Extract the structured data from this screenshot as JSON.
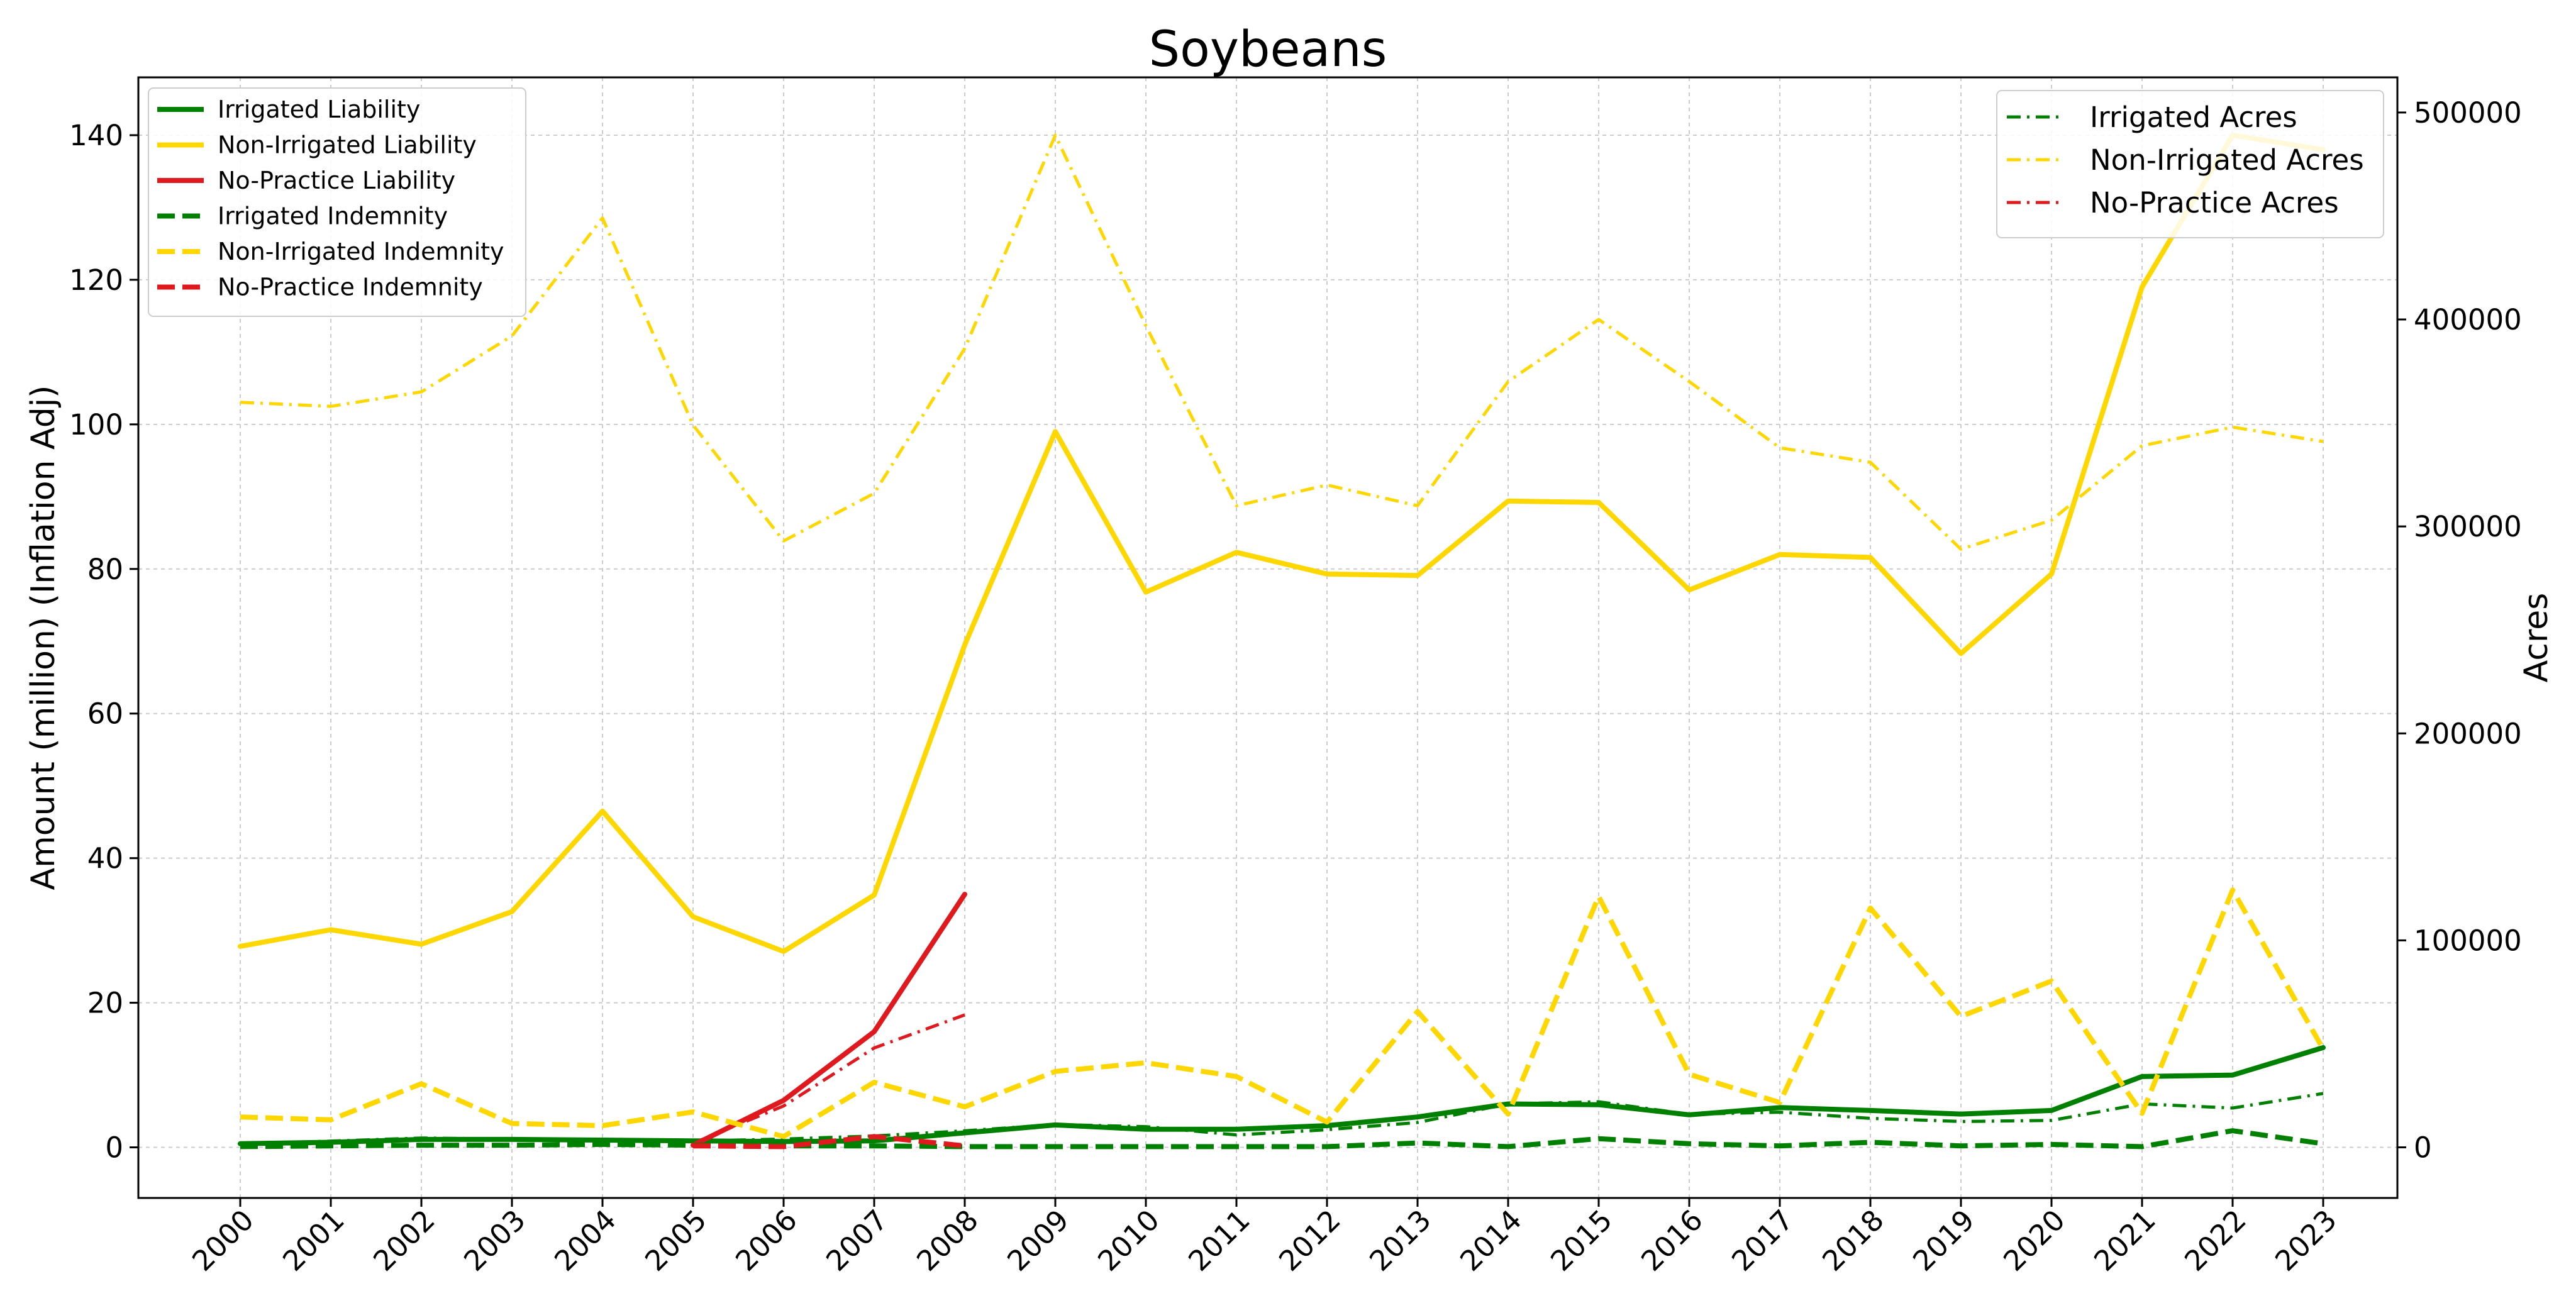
{
  "chart_data": {
    "type": "line",
    "title": "Soybeans",
    "ylabel": "Amount (million) (Inflation Adj)",
    "y2label": "Acres",
    "x": [
      "2000",
      "2001",
      "2002",
      "2003",
      "2004",
      "2005",
      "2006",
      "2007",
      "2008",
      "2009",
      "2010",
      "2011",
      "2012",
      "2013",
      "2014",
      "2015",
      "2016",
      "2017",
      "2018",
      "2019",
      "2020",
      "2021",
      "2022",
      "2023"
    ],
    "ylim": [
      -7,
      148
    ],
    "y2lim": [
      -24455,
      516982
    ],
    "yticks": [
      "0",
      "20",
      "40",
      "60",
      "80",
      "100",
      "120",
      "140"
    ],
    "y2ticks": [
      "0",
      "100000",
      "200000",
      "300000",
      "400000",
      "500000"
    ],
    "grid": true,
    "legend_left_position": "top-left",
    "legend_right_position": "top-right",
    "series": [
      {
        "name": "Irrigated Liability",
        "axis": "left",
        "style": "solid",
        "width": "thick",
        "color": "#008000",
        "values": [
          0.5,
          0.7,
          1.1,
          1.1,
          1.0,
          0.9,
          0.8,
          0.9,
          2.0,
          3.1,
          2.5,
          2.5,
          3.0,
          4.2,
          6.0,
          5.9,
          4.5,
          5.5,
          5.1,
          4.6,
          5.1,
          9.8,
          10.0,
          13.8
        ]
      },
      {
        "name": "Non-Irrigated Liability",
        "axis": "left",
        "style": "solid",
        "width": "thick",
        "color": "#FFD700",
        "values": [
          27.8,
          30.1,
          28.1,
          32.6,
          46.5,
          31.9,
          27.1,
          34.9,
          69.5,
          99.0,
          76.8,
          82.3,
          79.3,
          79.1,
          89.4,
          89.2,
          77.1,
          82.0,
          81.6,
          68.3,
          79.3,
          119.0,
          140.0,
          138.0
        ]
      },
      {
        "name": "No-Practice Liability",
        "axis": "left",
        "style": "solid",
        "width": "thick",
        "color": "#E0191E",
        "values": [
          null,
          null,
          null,
          null,
          null,
          0.3,
          6.5,
          16.0,
          35.0,
          null,
          null,
          null,
          null,
          null,
          null,
          null,
          null,
          null,
          null,
          null,
          null,
          null,
          null,
          null
        ]
      },
      {
        "name": "Irrigated Indemnity",
        "axis": "left",
        "style": "dashed",
        "width": "thick",
        "color": "#008000",
        "values": [
          0.1,
          0.2,
          0.3,
          0.3,
          0.4,
          0.3,
          0.2,
          0.2,
          0.1,
          0.1,
          0.1,
          0.1,
          0.1,
          0.6,
          0.1,
          1.2,
          0.5,
          0.2,
          0.7,
          0.2,
          0.4,
          0.1,
          2.3,
          0.5
        ]
      },
      {
        "name": "Non-Irrigated Indemnity",
        "axis": "left",
        "style": "dashed",
        "width": "thick",
        "color": "#FFD700",
        "values": [
          4.2,
          3.8,
          8.8,
          3.3,
          3.0,
          4.9,
          1.5,
          9.0,
          5.6,
          10.5,
          11.7,
          9.8,
          3.5,
          18.8,
          4.6,
          34.7,
          10.1,
          6.2,
          33.1,
          18.1,
          23.0,
          4.7,
          35.6,
          13.6
        ]
      },
      {
        "name": "No-Practice Indemnity",
        "axis": "left",
        "style": "dashed",
        "width": "thick",
        "color": "#E0191E",
        "values": [
          null,
          null,
          null,
          null,
          null,
          0.2,
          0.1,
          1.5,
          0.2,
          null,
          null,
          null,
          null,
          null,
          null,
          null,
          null,
          null,
          null,
          null,
          null,
          null,
          null,
          null
        ]
      },
      {
        "name": "Irrigated Acres",
        "axis": "right",
        "style": "dashdot",
        "width": "thin",
        "color": "#008000",
        "values": [
          1500,
          3000,
          4500,
          4000,
          3500,
          3000,
          4000,
          5500,
          8000,
          11000,
          10000,
          6000,
          8500,
          12000,
          21000,
          22000,
          16000,
          17000,
          14000,
          12500,
          13000,
          21000,
          19000,
          26000
        ]
      },
      {
        "name": "Non-Irrigated Acres",
        "axis": "right",
        "style": "dashdot",
        "width": "thin",
        "color": "#FFD700",
        "values": [
          360000,
          358000,
          365000,
          392000,
          449000,
          349000,
          293000,
          316000,
          386000,
          489000,
          397000,
          310000,
          320000,
          310000,
          370000,
          400000,
          370000,
          338000,
          331000,
          289000,
          303000,
          339000,
          348000,
          341000
        ]
      },
      {
        "name": "No-Practice Acres",
        "axis": "right",
        "style": "dashdot",
        "width": "thin",
        "color": "#E0191E",
        "values": [
          null,
          null,
          null,
          null,
          null,
          2000,
          20000,
          48000,
          64000,
          null,
          null,
          null,
          null,
          null,
          null,
          null,
          null,
          null,
          null,
          null,
          null,
          null,
          null,
          null
        ]
      }
    ]
  }
}
